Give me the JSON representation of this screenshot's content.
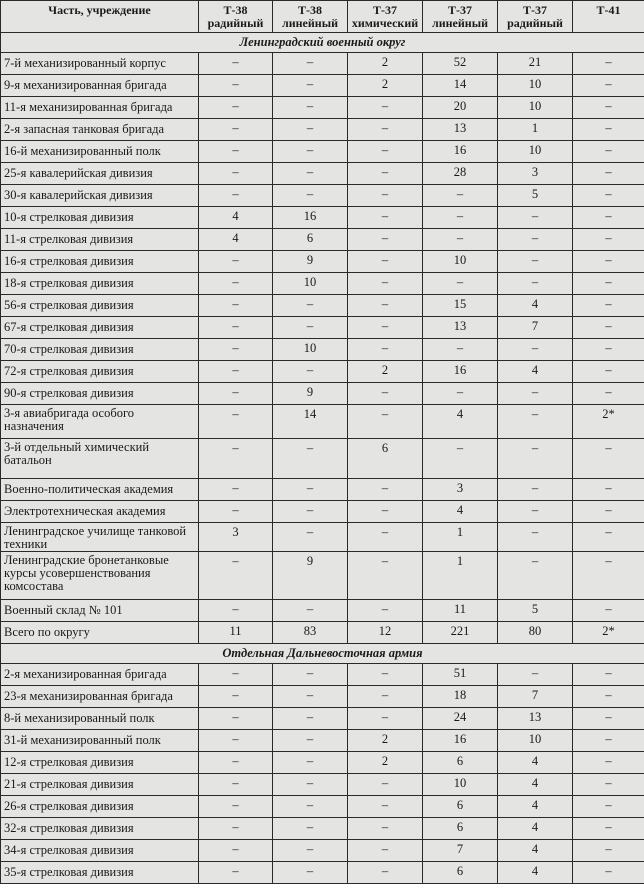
{
  "table": {
    "headers": [
      {
        "line1": "Часть, учреждение",
        "line2": ""
      },
      {
        "line1": "Т-38",
        "line2": "радийный"
      },
      {
        "line1": "Т-38",
        "line2": "линейный"
      },
      {
        "line1": "Т-37",
        "line2": "химический"
      },
      {
        "line1": "Т-37",
        "line2": "линейный"
      },
      {
        "line1": "Т-37",
        "line2": "радийный"
      },
      {
        "line1": "Т-41",
        "line2": ""
      }
    ],
    "sections": [
      {
        "title": "Ленинградский военный округ",
        "rows": [
          {
            "name": "7-й механизированный корпус",
            "values": [
              "–",
              "–",
              "2",
              "52",
              "21",
              "–"
            ]
          },
          {
            "name": "9-я механизированная бригада",
            "values": [
              "–",
              "–",
              "2",
              "14",
              "10",
              "–"
            ]
          },
          {
            "name": "11-я механизированная бригада",
            "values": [
              "–",
              "–",
              "–",
              "20",
              "10",
              "–"
            ]
          },
          {
            "name": "2-я запасная танковая бригада",
            "values": [
              "–",
              "–",
              "–",
              "13",
              "1",
              "–"
            ]
          },
          {
            "name": "16-й механизированный полк",
            "values": [
              "–",
              "–",
              "–",
              "16",
              "10",
              "–"
            ]
          },
          {
            "name": "25-я кавалерийская дивизия",
            "values": [
              "–",
              "–",
              "–",
              "28",
              "3",
              "–"
            ]
          },
          {
            "name": "30-я кавалерийская дивизия",
            "values": [
              "–",
              "–",
              "–",
              "–",
              "5",
              "–"
            ]
          },
          {
            "name": "10-я стрелковая дивизия",
            "values": [
              "4",
              "16",
              "–",
              "–",
              "–",
              "–"
            ]
          },
          {
            "name": "11-я стрелковая дивизия",
            "values": [
              "4",
              "6",
              "–",
              "–",
              "–",
              "–"
            ]
          },
          {
            "name": "16-я стрелковая дивизия",
            "values": [
              "–",
              "9",
              "–",
              "10",
              "–",
              "–"
            ]
          },
          {
            "name": "18-я стрелковая дивизия",
            "values": [
              "–",
              "10",
              "–",
              "–",
              "–",
              "–"
            ]
          },
          {
            "name": "56-я стрелковая дивизия",
            "values": [
              "–",
              "–",
              "–",
              "15",
              "4",
              "–"
            ]
          },
          {
            "name": "67-я стрелковая дивизия",
            "values": [
              "–",
              "–",
              "–",
              "13",
              "7",
              "–"
            ]
          },
          {
            "name": "70-я стрелковая дивизия",
            "values": [
              "–",
              "10",
              "–",
              "–",
              "–",
              "–"
            ]
          },
          {
            "name": "72-я стрелковая дивизия",
            "values": [
              "–",
              "–",
              "2",
              "16",
              "4",
              "–"
            ]
          },
          {
            "name": "90-я стрелковая дивизия",
            "values": [
              "–",
              "9",
              "–",
              "–",
              "–",
              "–"
            ]
          },
          {
            "name": "3-я авиабригада особого назначения",
            "values": [
              "–",
              "14",
              "–",
              "4",
              "–",
              "2*"
            ]
          },
          {
            "name": "3-й отдельный химический батальон",
            "values": [
              "–",
              "–",
              "6",
              "–",
              "–",
              "–"
            ]
          },
          {
            "name": "Военно-политическая академия",
            "values": [
              "–",
              "–",
              "–",
              "3",
              "–",
              "–"
            ]
          },
          {
            "name": "Электротехническая академия",
            "values": [
              "–",
              "–",
              "–",
              "4",
              "–",
              "–"
            ]
          },
          {
            "name": "Ленинградское училище танковой техники",
            "values": [
              "3",
              "–",
              "–",
              "1",
              "–",
              "–"
            ]
          },
          {
            "name": "Ленинградские бронетанковые курсы усовершенствования комсостава",
            "values": [
              "–",
              "9",
              "–",
              "1",
              "–",
              "–"
            ]
          },
          {
            "name": "Военный склад № 101",
            "values": [
              "–",
              "–",
              "–",
              "11",
              "5",
              "–"
            ]
          },
          {
            "name": "Всего по округу",
            "values": [
              "11",
              "83",
              "12",
              "221",
              "80",
              "2*"
            ]
          }
        ]
      },
      {
        "title": "Отдельная Дальневосточная армия",
        "rows": [
          {
            "name": "2-я механизированная бригада",
            "values": [
              "–",
              "–",
              "–",
              "51",
              "–",
              "–"
            ]
          },
          {
            "name": "23-я механизированная бригада",
            "values": [
              "–",
              "–",
              "–",
              "18",
              "7",
              "–"
            ]
          },
          {
            "name": "8-й механизированный полк",
            "values": [
              "–",
              "–",
              "–",
              "24",
              "13",
              "–"
            ]
          },
          {
            "name": "31-й механизированный полк",
            "values": [
              "–",
              "–",
              "2",
              "16",
              "10",
              "–"
            ]
          },
          {
            "name": "12-я стрелковая дивизия",
            "values": [
              "–",
              "–",
              "2",
              "6",
              "4",
              "–"
            ]
          },
          {
            "name": "21-я стрелковая дивизия",
            "values": [
              "–",
              "–",
              "–",
              "10",
              "4",
              "–"
            ]
          },
          {
            "name": "26-я стрелковая дивизия",
            "values": [
              "–",
              "–",
              "–",
              "6",
              "4",
              "–"
            ]
          },
          {
            "name": "32-я стрелковая дивизия",
            "values": [
              "–",
              "–",
              "–",
              "6",
              "4",
              "–"
            ]
          },
          {
            "name": "34-я стрелковая дивизия",
            "values": [
              "–",
              "–",
              "–",
              "7",
              "4",
              "–"
            ]
          },
          {
            "name": "35-я стрелковая дивизия",
            "values": [
              "–",
              "–",
              "–",
              "6",
              "4",
              "–"
            ]
          }
        ]
      }
    ]
  }
}
